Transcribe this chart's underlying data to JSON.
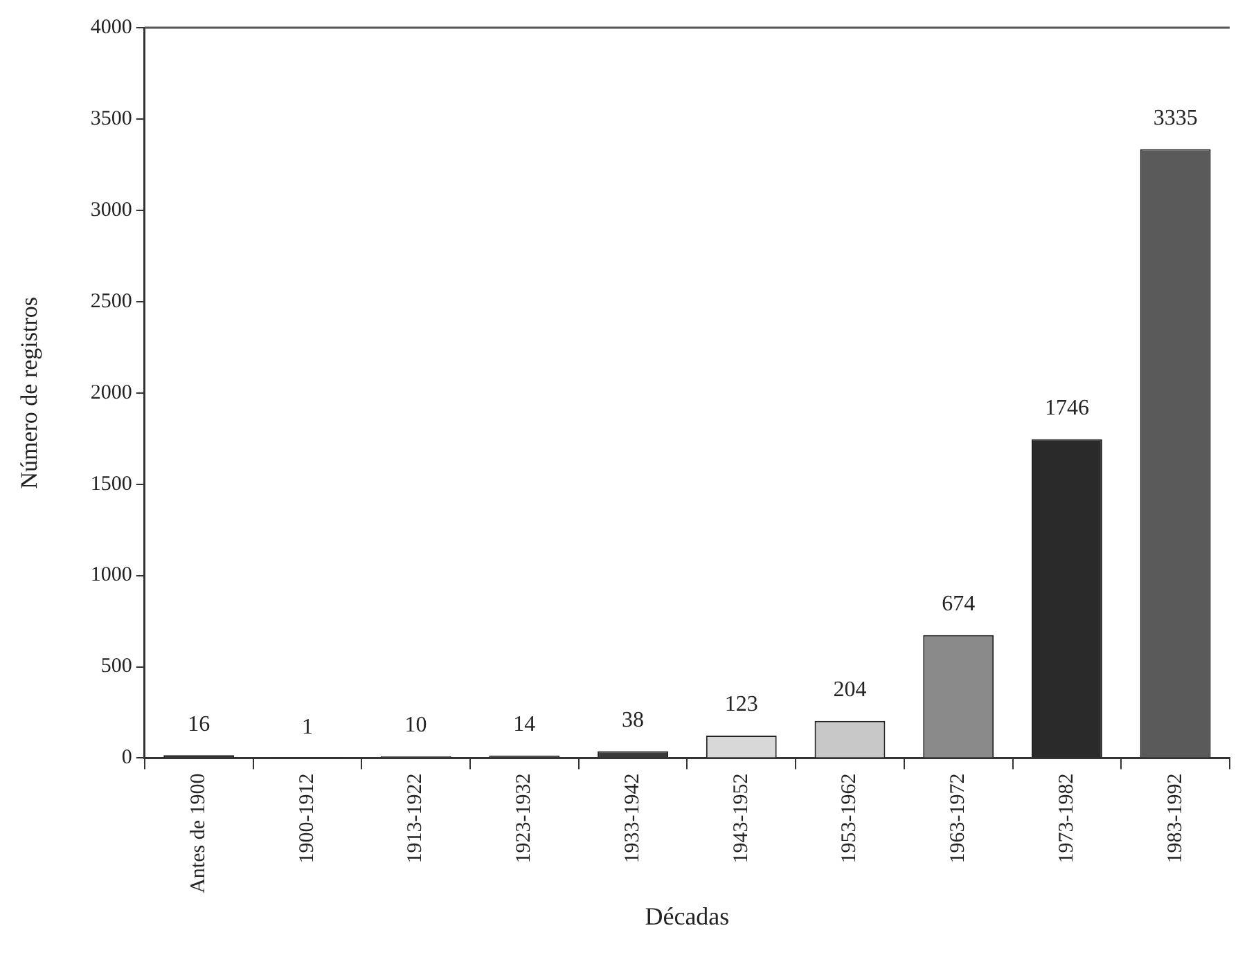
{
  "chart_data": {
    "type": "bar",
    "xlabel": "Décadas",
    "ylabel": "Número de registros",
    "categories": [
      "Antes de 1900",
      "1900-1912",
      "1913-1922",
      "1923-1932",
      "1933-1942",
      "1943-1952",
      "1953-1962",
      "1963-1972",
      "1973-1982",
      "1983-1992"
    ],
    "values": [
      16,
      1,
      10,
      14,
      38,
      123,
      204,
      674,
      1746,
      3335
    ],
    "colors": [
      "#3a3a3a",
      "#3a3a3a",
      "#4a4a4a",
      "#4a4a4a",
      "#3a3a3a",
      "#d8d8d8",
      "#c8c8c8",
      "#8a8a8a",
      "#2a2a2a",
      "#5a5a5a"
    ],
    "ylim": [
      0,
      4000
    ],
    "yticks": [
      0,
      500,
      1000,
      1500,
      2000,
      2500,
      3000,
      3500,
      4000
    ],
    "data_labels": true,
    "grid": false,
    "legend": false
  }
}
